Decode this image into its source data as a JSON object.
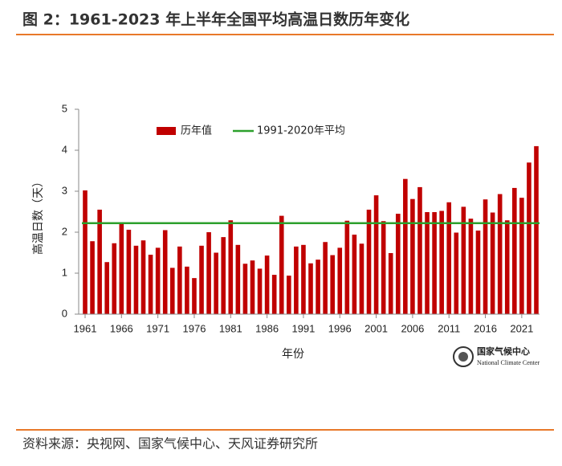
{
  "title": "图 2：1961-2023 年上半年全国平均高温日数历年变化",
  "source": "资料来源：央视网、国家气候中心、天风证券研究所",
  "logo": {
    "name": "国家气候中心",
    "subtitle": "National Climate Center"
  },
  "chart_data": {
    "type": "bar",
    "xlabel": "年份",
    "ylabel": "高温日数（天）",
    "categories": [
      "1961",
      null,
      null,
      null,
      null,
      "1966",
      null,
      null,
      null,
      null,
      "1971",
      null,
      null,
      null,
      null,
      "1976",
      null,
      null,
      null,
      null,
      "1981",
      null,
      null,
      null,
      null,
      "1986",
      null,
      null,
      null,
      null,
      "1991",
      null,
      null,
      null,
      null,
      "1996",
      null,
      null,
      null,
      null,
      "2001",
      null,
      null,
      null,
      null,
      "2006",
      null,
      null,
      null,
      null,
      "2011",
      null,
      null,
      null,
      null,
      "2016",
      null,
      null,
      null,
      null,
      "2021",
      null,
      null
    ],
    "series": [
      {
        "name": "历年值",
        "color": "#c00000",
        "values": [
          3.02,
          1.78,
          2.55,
          1.27,
          1.73,
          2.22,
          2.06,
          1.67,
          1.8,
          1.45,
          1.62,
          2.05,
          1.13,
          1.65,
          1.16,
          0.88,
          1.67,
          2.0,
          1.5,
          1.88,
          2.29,
          1.69,
          1.23,
          1.31,
          1.11,
          1.43,
          0.96,
          2.4,
          0.94,
          1.65,
          1.69,
          1.24,
          1.33,
          1.76,
          1.44,
          1.62,
          2.28,
          1.94,
          1.72,
          2.55,
          2.9,
          2.27,
          1.49,
          2.45,
          3.3,
          2.81,
          3.1,
          2.49,
          2.49,
          2.52,
          2.73,
          1.99,
          2.62,
          2.33,
          2.04,
          2.8,
          2.48,
          2.93,
          2.29,
          3.08,
          2.84,
          3.7,
          4.1
        ]
      },
      {
        "name": "1991-2020年平均",
        "color": "#2ca02c",
        "type": "line",
        "value": 2.22
      }
    ],
    "ylim": [
      0,
      5
    ],
    "yticks": [
      0,
      1,
      2,
      3,
      4,
      5
    ]
  }
}
